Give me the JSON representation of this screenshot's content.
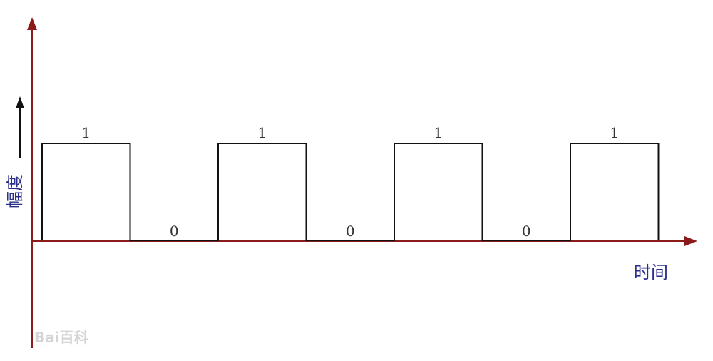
{
  "diagram": {
    "bits": [
      "1",
      "0",
      "1",
      "0",
      "1",
      "0",
      "1"
    ],
    "y_axis_label": "幅度",
    "x_axis_label": "时间",
    "colors": {
      "axis": "#8b1a1a",
      "signal": "#111111",
      "axis_label": "#2b2f8c",
      "bit_text": "#333333"
    },
    "icons": {
      "y_arrow": "arrow-up-icon",
      "x_arrow": "arrow-right-icon",
      "amplitude_arrow": "arrow-up-icon"
    }
  },
  "watermark": {
    "text": "Bai百科"
  }
}
